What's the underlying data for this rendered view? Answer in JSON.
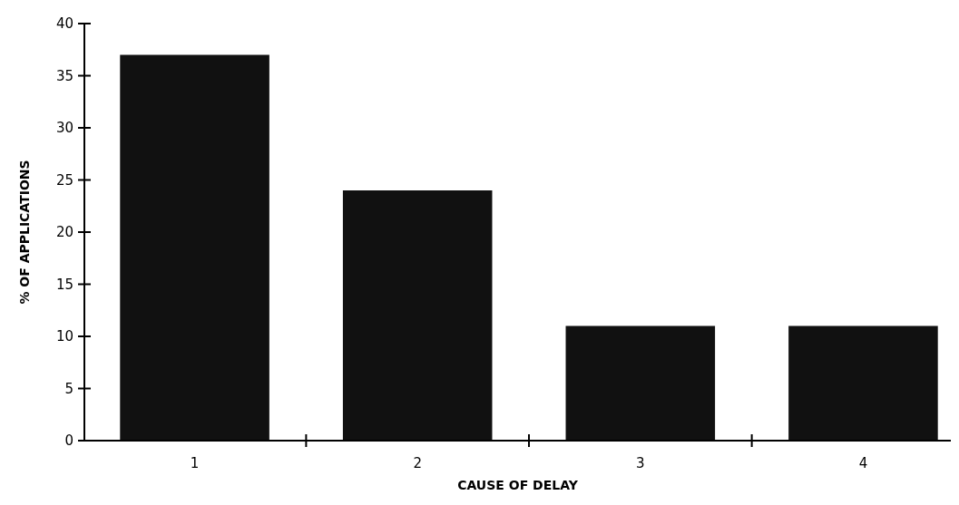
{
  "chart_data": {
    "type": "bar",
    "xlabel": "CAUSE OF DELAY",
    "ylabel": "% OF APPLICATIONS",
    "categories": [
      "1",
      "2",
      "3",
      "4"
    ],
    "values": [
      37,
      24,
      11,
      11
    ],
    "color": "#111111",
    "ylim": [
      0,
      40
    ],
    "yticks": [
      0,
      5,
      10,
      15,
      20,
      25,
      30,
      35,
      40
    ],
    "grid": false
  }
}
